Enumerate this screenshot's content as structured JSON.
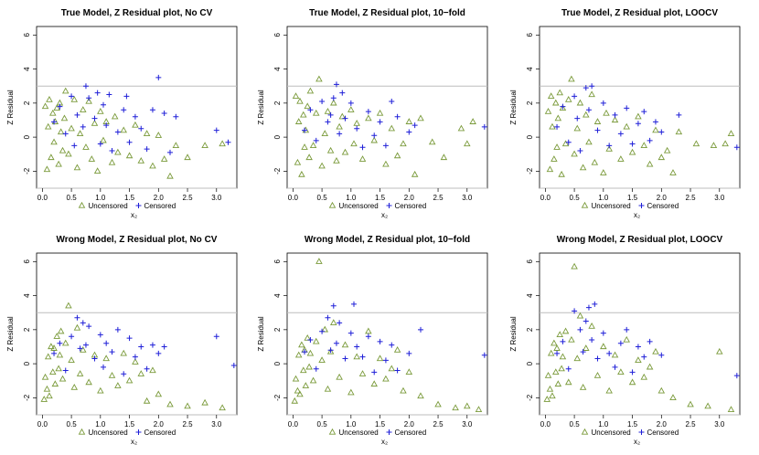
{
  "figure": {
    "colors": {
      "uncensored": "#7a9a3a",
      "censored": "#1f1fd8",
      "threshold_line": "#bdbdbd",
      "axis": "#000000"
    }
  },
  "chart_data": [
    {
      "type": "scatter",
      "title": "True Model, Z Residual plot, No CV",
      "xlabel": "x₂",
      "ylabel": "Z Residual",
      "xlim": [
        -0.1,
        3.35
      ],
      "ylim": [
        -3.0,
        6.5
      ],
      "xticks": [
        0.0,
        0.5,
        1.0,
        1.5,
        2.0,
        2.5,
        3.0
      ],
      "yticks": [
        -2,
        0,
        2,
        4,
        6
      ],
      "hlines": [
        3,
        -3
      ],
      "legend": {
        "position": "bottom",
        "entries": [
          "Uncensored",
          "Censored"
        ]
      },
      "series": [
        {
          "name": "Uncensored",
          "marker": "triangle",
          "x": [
            0.05,
            0.08,
            0.1,
            0.12,
            0.15,
            0.18,
            0.2,
            0.22,
            0.25,
            0.28,
            0.3,
            0.32,
            0.35,
            0.38,
            0.4,
            0.45,
            0.5,
            0.55,
            0.6,
            0.65,
            0.7,
            0.75,
            0.8,
            0.85,
            0.9,
            0.95,
            1.0,
            1.05,
            1.1,
            1.2,
            1.25,
            1.3,
            1.4,
            1.5,
            1.6,
            1.7,
            1.8,
            1.9,
            2.0,
            2.1,
            2.2,
            2.3,
            2.5,
            2.8,
            3.1
          ],
          "y": [
            1.8,
            -1.9,
            0.6,
            2.2,
            -1.2,
            1.4,
            -0.3,
            0.9,
            1.7,
            -1.6,
            2.0,
            0.3,
            -0.8,
            1.1,
            2.7,
            -1.0,
            0.5,
            2.2,
            -1.8,
            0.2,
            1.6,
            -0.6,
            2.1,
            -1.3,
            0.8,
            -2.0,
            1.5,
            -0.2,
            0.9,
            -1.5,
            1.2,
            -0.9,
            0.4,
            -1.1,
            0.7,
            -1.4,
            0.2,
            -1.7,
            0.1,
            -1.3,
            -2.3,
            -0.5,
            -1.2,
            -0.5,
            -0.4
          ]
        },
        {
          "name": "Censored",
          "marker": "plus",
          "x": [
            0.2,
            0.3,
            0.4,
            0.5,
            0.55,
            0.6,
            0.7,
            0.75,
            0.8,
            0.9,
            0.95,
            1.0,
            1.05,
            1.1,
            1.15,
            1.2,
            1.3,
            1.4,
            1.45,
            1.5,
            1.6,
            1.7,
            1.8,
            1.9,
            2.0,
            2.1,
            2.2,
            2.3,
            3.0,
            3.2
          ],
          "y": [
            0.9,
            1.8,
            0.2,
            2.4,
            -0.5,
            1.3,
            0.6,
            3.0,
            2.3,
            1.1,
            2.6,
            -0.4,
            1.9,
            0.7,
            2.5,
            -0.8,
            0.3,
            1.6,
            2.4,
            -0.3,
            1.2,
            0.5,
            -0.7,
            1.6,
            3.5,
            1.4,
            -0.9,
            1.2,
            0.4,
            -0.3
          ]
        }
      ]
    },
    {
      "type": "scatter",
      "title": "True Model, Z Residual plot, 10−fold",
      "xlabel": "x₂",
      "ylabel": "Z Residual",
      "xlim": [
        -0.1,
        3.35
      ],
      "ylim": [
        -3.0,
        6.5
      ],
      "xticks": [
        0.0,
        0.5,
        1.0,
        1.5,
        2.0,
        2.5,
        3.0
      ],
      "yticks": [
        -2,
        0,
        2,
        4,
        6
      ],
      "hlines": [
        3,
        -3
      ],
      "legend": {
        "position": "bottom",
        "entries": [
          "Uncensored",
          "Censored"
        ]
      },
      "series": [
        {
          "name": "Uncensored",
          "marker": "triangle",
          "x": [
            0.05,
            0.08,
            0.1,
            0.12,
            0.15,
            0.18,
            0.2,
            0.22,
            0.25,
            0.28,
            0.3,
            0.35,
            0.4,
            0.45,
            0.5,
            0.55,
            0.6,
            0.65,
            0.7,
            0.75,
            0.8,
            0.85,
            0.9,
            1.0,
            1.05,
            1.1,
            1.2,
            1.3,
            1.4,
            1.5,
            1.6,
            1.7,
            1.8,
            1.9,
            2.0,
            2.1,
            2.2,
            2.4,
            2.6,
            2.9,
            3.0,
            3.1
          ],
          "y": [
            2.4,
            -1.5,
            0.9,
            2.1,
            -2.2,
            1.3,
            -0.6,
            0.4,
            1.8,
            -1.2,
            2.7,
            -0.5,
            1.4,
            3.4,
            -1.7,
            0.2,
            1.5,
            -0.8,
            2.0,
            -1.4,
            0.6,
            1.2,
            -0.9,
            1.6,
            -0.4,
            0.8,
            -1.3,
            1.1,
            -0.2,
            1.4,
            -1.6,
            0.5,
            -1.1,
            -0.4,
            0.9,
            -2.2,
            1.1,
            -0.3,
            -1.2,
            0.5,
            -0.4,
            0.9
          ]
        },
        {
          "name": "Censored",
          "marker": "plus",
          "x": [
            0.2,
            0.3,
            0.4,
            0.5,
            0.6,
            0.65,
            0.7,
            0.75,
            0.8,
            0.85,
            0.9,
            1.0,
            1.1,
            1.2,
            1.3,
            1.4,
            1.5,
            1.6,
            1.7,
            1.8,
            2.0,
            2.1,
            3.3
          ],
          "y": [
            0.4,
            1.6,
            -0.2,
            2.1,
            0.9,
            1.3,
            2.3,
            3.1,
            0.2,
            2.6,
            1.1,
            2.0,
            0.5,
            -0.6,
            1.5,
            0.1,
            0.9,
            -0.5,
            2.1,
            1.2,
            0.3,
            0.7,
            0.6
          ]
        }
      ]
    },
    {
      "type": "scatter",
      "title": "True Model, Z Residual plot, LOOCV",
      "xlabel": "x₂",
      "ylabel": "Z Residual",
      "xlim": [
        -0.1,
        3.35
      ],
      "ylim": [
        -3.0,
        6.5
      ],
      "xticks": [
        0.0,
        0.5,
        1.0,
        1.5,
        2.0,
        2.5,
        3.0
      ],
      "yticks": [
        -2,
        0,
        2,
        4,
        6
      ],
      "hlines": [
        3,
        -3
      ],
      "legend": {
        "position": "bottom",
        "entries": [
          "Uncensored",
          "Censored"
        ]
      },
      "series": [
        {
          "name": "Uncensored",
          "marker": "triangle",
          "x": [
            0.05,
            0.08,
            0.1,
            0.12,
            0.15,
            0.18,
            0.2,
            0.22,
            0.25,
            0.28,
            0.3,
            0.35,
            0.4,
            0.45,
            0.5,
            0.55,
            0.6,
            0.65,
            0.7,
            0.75,
            0.8,
            0.85,
            0.9,
            1.0,
            1.05,
            1.1,
            1.2,
            1.3,
            1.4,
            1.5,
            1.6,
            1.7,
            1.8,
            1.9,
            2.0,
            2.1,
            2.2,
            2.3,
            2.6,
            2.9,
            3.1,
            3.2
          ],
          "y": [
            1.5,
            -1.9,
            2.4,
            0.6,
            -1.3,
            2.0,
            -0.6,
            1.1,
            2.6,
            -2.2,
            1.7,
            -0.4,
            2.2,
            3.4,
            -1.0,
            0.5,
            2.0,
            -1.8,
            1.3,
            -0.3,
            2.5,
            -1.5,
            0.9,
            -2.1,
            1.4,
            -0.7,
            1.0,
            -1.3,
            0.6,
            -0.9,
            1.2,
            -0.5,
            -1.6,
            0.4,
            -1.2,
            -0.8,
            -2.1,
            0.3,
            -0.4,
            -0.5,
            -0.4,
            0.2
          ]
        },
        {
          "name": "Censored",
          "marker": "plus",
          "x": [
            0.2,
            0.3,
            0.4,
            0.5,
            0.55,
            0.6,
            0.7,
            0.75,
            0.8,
            0.9,
            1.0,
            1.1,
            1.2,
            1.3,
            1.4,
            1.5,
            1.6,
            1.7,
            1.8,
            1.9,
            2.0,
            2.3,
            3.3
          ],
          "y": [
            0.6,
            1.8,
            -0.3,
            2.4,
            1.1,
            -0.8,
            2.9,
            1.6,
            3.0,
            0.4,
            2.0,
            -0.5,
            1.3,
            0.2,
            1.7,
            -0.4,
            0.8,
            1.5,
            -0.2,
            0.9,
            0.3,
            1.3,
            -0.6
          ]
        }
      ]
    },
    {
      "type": "scatter",
      "title": "Wrong Model, Z Residual plot, No CV",
      "xlabel": "x₂",
      "ylabel": "Z Residual",
      "xlim": [
        -0.1,
        3.35
      ],
      "ylim": [
        -3.0,
        6.5
      ],
      "xticks": [
        0.0,
        0.5,
        1.0,
        1.5,
        2.0,
        2.5,
        3.0
      ],
      "yticks": [
        -2,
        0,
        2,
        4,
        6
      ],
      "hlines": [
        3,
        -3
      ],
      "legend": {
        "position": "bottom",
        "entries": [
          "Uncensored",
          "Censored"
        ]
      },
      "series": [
        {
          "name": "Uncensored",
          "marker": "triangle",
          "x": [
            0.03,
            0.05,
            0.08,
            0.1,
            0.12,
            0.15,
            0.18,
            0.2,
            0.22,
            0.25,
            0.28,
            0.3,
            0.32,
            0.35,
            0.4,
            0.45,
            0.5,
            0.55,
            0.6,
            0.65,
            0.7,
            0.8,
            0.9,
            1.0,
            1.1,
            1.2,
            1.3,
            1.4,
            1.5,
            1.6,
            1.7,
            1.8,
            1.9,
            2.0,
            2.2,
            2.5,
            2.8,
            3.1
          ],
          "y": [
            -2.1,
            -0.8,
            -1.5,
            0.4,
            -1.9,
            1.0,
            -0.5,
            0.9,
            -1.2,
            1.6,
            -0.3,
            0.5,
            1.9,
            -0.9,
            1.2,
            3.4,
            0.2,
            -1.4,
            2.1,
            -0.6,
            0.8,
            -1.1,
            0.5,
            -1.6,
            0.3,
            -0.7,
            -1.3,
            0.6,
            -1.0,
            0.1,
            -0.6,
            -2.2,
            -0.4,
            -1.8,
            -2.4,
            -2.5,
            -2.3,
            -2.6
          ]
        },
        {
          "name": "Censored",
          "marker": "plus",
          "x": [
            0.2,
            0.3,
            0.4,
            0.5,
            0.6,
            0.65,
            0.7,
            0.75,
            0.8,
            0.9,
            1.0,
            1.05,
            1.1,
            1.2,
            1.3,
            1.4,
            1.5,
            1.6,
            1.7,
            1.8,
            1.9,
            2.0,
            2.1,
            3.0,
            3.3
          ],
          "y": [
            0.6,
            1.2,
            -0.4,
            1.6,
            2.7,
            0.9,
            2.4,
            1.1,
            2.2,
            0.3,
            1.7,
            -0.2,
            1.2,
            0.7,
            2.0,
            -0.6,
            1.5,
            0.4,
            1.0,
            -0.3,
            1.1,
            0.6,
            1.0,
            1.6,
            -0.1
          ]
        }
      ]
    },
    {
      "type": "scatter",
      "title": "Wrong Model, Z Residual plot, 10−fold",
      "xlabel": "x₂",
      "ylabel": "Z Residual",
      "xlim": [
        -0.1,
        3.35
      ],
      "ylim": [
        -3.0,
        6.5
      ],
      "xticks": [
        0.0,
        0.5,
        1.0,
        1.5,
        2.0,
        2.5,
        3.0
      ],
      "yticks": [
        -2,
        0,
        2,
        4,
        6
      ],
      "hlines": [
        3,
        -3
      ],
      "legend": {
        "position": "bottom",
        "entries": [
          "Uncensored",
          "Censored"
        ]
      },
      "series": [
        {
          "name": "Uncensored",
          "marker": "triangle",
          "x": [
            0.03,
            0.05,
            0.08,
            0.1,
            0.12,
            0.15,
            0.18,
            0.2,
            0.22,
            0.25,
            0.28,
            0.3,
            0.35,
            0.4,
            0.45,
            0.5,
            0.55,
            0.6,
            0.65,
            0.7,
            0.8,
            0.9,
            1.0,
            1.1,
            1.2,
            1.3,
            1.4,
            1.5,
            1.6,
            1.7,
            1.8,
            1.9,
            2.0,
            2.2,
            2.5,
            2.8,
            3.0,
            3.2
          ],
          "y": [
            -2.2,
            -0.9,
            -1.6,
            0.5,
            -1.8,
            1.1,
            -0.4,
            0.8,
            -1.3,
            1.5,
            -0.2,
            0.6,
            -1.0,
            1.3,
            6.0,
            0.2,
            2.0,
            -1.5,
            0.7,
            2.4,
            -0.8,
            1.1,
            -1.7,
            0.4,
            -0.6,
            1.9,
            -1.2,
            0.3,
            -0.9,
            -0.3,
            0.8,
            -1.6,
            -0.5,
            -1.9,
            -2.4,
            -2.6,
            -2.5,
            -2.7
          ]
        },
        {
          "name": "Censored",
          "marker": "plus",
          "x": [
            0.2,
            0.3,
            0.4,
            0.5,
            0.6,
            0.65,
            0.7,
            0.75,
            0.8,
            0.9,
            1.0,
            1.05,
            1.1,
            1.2,
            1.3,
            1.4,
            1.5,
            1.6,
            1.7,
            1.8,
            2.0,
            2.2,
            3.3
          ],
          "y": [
            0.7,
            1.4,
            -0.3,
            1.9,
            2.7,
            0.8,
            3.4,
            1.2,
            2.4,
            0.3,
            1.8,
            3.5,
            1.0,
            0.4,
            1.6,
            -0.5,
            1.3,
            0.2,
            1.1,
            -0.4,
            0.6,
            2.0,
            0.5
          ]
        }
      ]
    },
    {
      "type": "scatter",
      "title": "Wrong Model, Z Residual plot, LOOCV",
      "xlabel": "x₂",
      "ylabel": "Z Residual",
      "xlim": [
        -0.1,
        3.35
      ],
      "ylim": [
        -3.0,
        6.5
      ],
      "xticks": [
        0.0,
        0.5,
        1.0,
        1.5,
        2.0,
        2.5,
        3.0
      ],
      "yticks": [
        -2,
        0,
        2,
        4,
        6
      ],
      "hlines": [
        3,
        -3
      ],
      "legend": {
        "position": "bottom",
        "entries": [
          "Uncensored",
          "Censored"
        ]
      },
      "series": [
        {
          "name": "Uncensored",
          "marker": "triangle",
          "x": [
            0.03,
            0.05,
            0.08,
            0.1,
            0.12,
            0.15,
            0.18,
            0.2,
            0.22,
            0.25,
            0.28,
            0.3,
            0.35,
            0.4,
            0.45,
            0.5,
            0.55,
            0.6,
            0.65,
            0.7,
            0.8,
            0.9,
            1.0,
            1.1,
            1.2,
            1.3,
            1.4,
            1.5,
            1.6,
            1.7,
            1.8,
            1.9,
            2.0,
            2.2,
            2.5,
            2.8,
            3.0,
            3.2
          ],
          "y": [
            -2.1,
            -0.7,
            -1.5,
            0.6,
            -1.9,
            1.2,
            -0.5,
            0.9,
            -1.2,
            1.7,
            -0.3,
            0.4,
            1.9,
            -1.1,
            1.4,
            5.7,
            0.3,
            2.8,
            -1.4,
            0.9,
            2.2,
            -0.7,
            1.0,
            -1.6,
            0.5,
            -0.5,
            1.4,
            -1.1,
            0.2,
            -0.8,
            -0.2,
            0.7,
            -1.6,
            -2.0,
            -2.4,
            -2.5,
            0.7,
            -2.7
          ]
        },
        {
          "name": "Censored",
          "marker": "plus",
          "x": [
            0.2,
            0.3,
            0.4,
            0.5,
            0.6,
            0.65,
            0.7,
            0.75,
            0.8,
            0.85,
            0.9,
            1.0,
            1.1,
            1.2,
            1.3,
            1.4,
            1.5,
            1.6,
            1.7,
            1.8,
            2.0,
            3.3
          ],
          "y": [
            0.6,
            1.3,
            -0.3,
            3.1,
            2.0,
            0.7,
            2.5,
            3.3,
            1.4,
            3.5,
            0.3,
            1.8,
            0.6,
            -0.2,
            1.2,
            2.0,
            -0.5,
            1.0,
            0.4,
            1.3,
            0.5,
            -0.7
          ]
        }
      ]
    }
  ]
}
